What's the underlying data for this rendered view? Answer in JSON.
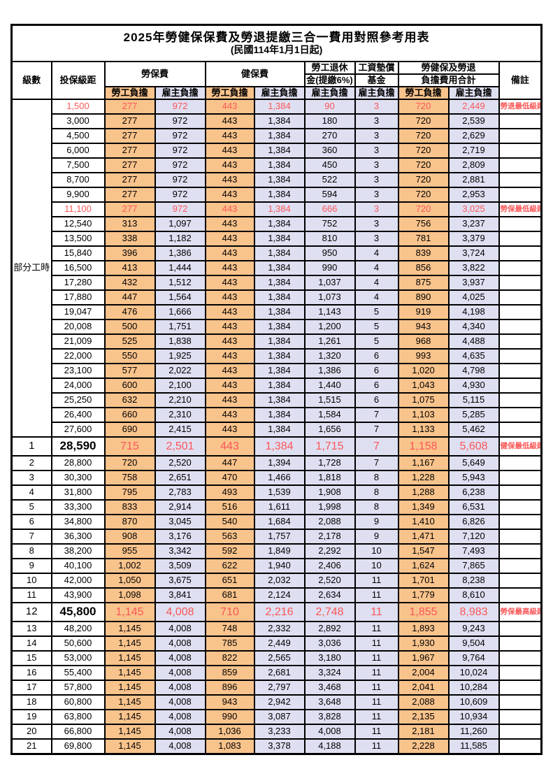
{
  "title": "2025年勞健保保費及勞退提繳三合一費用對照參考用表",
  "subtitle": "(民國114年1月1日起)",
  "columns": {
    "level": "級數",
    "bracket": "投保級距",
    "labor_ins": "勞保費",
    "health_ins": "健保費",
    "pension_l1": "勞工退休",
    "pension_l2": "金(提繳6%)",
    "wage_fund_l1": "工資墊償",
    "wage_fund_l2": "基金",
    "total_l1": "勞健保及勞退",
    "total_l2": "負擔費用合計",
    "remark": "備註",
    "employee": "勞工負擔",
    "employer": "雇主負擔"
  },
  "part_time_label": "部分工時",
  "colors": {
    "employee_fill": "#F9C38C",
    "employer_fill": "#DFDFF2",
    "highlight_text": "#FA5757",
    "border": "#000000"
  },
  "rows": [
    {
      "br": "1,500",
      "li_e": "277",
      "li_r": "972",
      "hi_e": "443",
      "hi_r": "1,384",
      "pe": "90",
      "wf": "3",
      "to_e": "720",
      "to_r": "2,449",
      "rm": "勞退最低級距",
      "red": 1
    },
    {
      "br": "3,000",
      "li_e": "277",
      "li_r": "972",
      "hi_e": "443",
      "hi_r": "1,384",
      "pe": "180",
      "wf": "3",
      "to_e": "720",
      "to_r": "2,539"
    },
    {
      "br": "4,500",
      "li_e": "277",
      "li_r": "972",
      "hi_e": "443",
      "hi_r": "1,384",
      "pe": "270",
      "wf": "3",
      "to_e": "720",
      "to_r": "2,629"
    },
    {
      "br": "6,000",
      "li_e": "277",
      "li_r": "972",
      "hi_e": "443",
      "hi_r": "1,384",
      "pe": "360",
      "wf": "3",
      "to_e": "720",
      "to_r": "2,719"
    },
    {
      "br": "7,500",
      "li_e": "277",
      "li_r": "972",
      "hi_e": "443",
      "hi_r": "1,384",
      "pe": "450",
      "wf": "3",
      "to_e": "720",
      "to_r": "2,809"
    },
    {
      "br": "8,700",
      "li_e": "277",
      "li_r": "972",
      "hi_e": "443",
      "hi_r": "1,384",
      "pe": "522",
      "wf": "3",
      "to_e": "720",
      "to_r": "2,881"
    },
    {
      "br": "9,900",
      "li_e": "277",
      "li_r": "972",
      "hi_e": "443",
      "hi_r": "1,384",
      "pe": "594",
      "wf": "3",
      "to_e": "720",
      "to_r": "2,953"
    },
    {
      "br": "11,100",
      "li_e": "277",
      "li_r": "972",
      "hi_e": "443",
      "hi_r": "1,384",
      "pe": "666",
      "wf": "3",
      "to_e": "720",
      "to_r": "3,025",
      "rm": "勞保最低級距",
      "red": 1
    },
    {
      "br": "12,540",
      "li_e": "313",
      "li_r": "1,097",
      "hi_e": "443",
      "hi_r": "1,384",
      "pe": "752",
      "wf": "3",
      "to_e": "756",
      "to_r": "3,237"
    },
    {
      "br": "13,500",
      "li_e": "338",
      "li_r": "1,182",
      "hi_e": "443",
      "hi_r": "1,384",
      "pe": "810",
      "wf": "3",
      "to_e": "781",
      "to_r": "3,379"
    },
    {
      "br": "15,840",
      "li_e": "396",
      "li_r": "1,386",
      "hi_e": "443",
      "hi_r": "1,384",
      "pe": "950",
      "wf": "4",
      "to_e": "839",
      "to_r": "3,724"
    },
    {
      "br": "16,500",
      "li_e": "413",
      "li_r": "1,444",
      "hi_e": "443",
      "hi_r": "1,384",
      "pe": "990",
      "wf": "4",
      "to_e": "856",
      "to_r": "3,822"
    },
    {
      "br": "17,280",
      "li_e": "432",
      "li_r": "1,512",
      "hi_e": "443",
      "hi_r": "1,384",
      "pe": "1,037",
      "wf": "4",
      "to_e": "875",
      "to_r": "3,937"
    },
    {
      "br": "17,880",
      "li_e": "447",
      "li_r": "1,564",
      "hi_e": "443",
      "hi_r": "1,384",
      "pe": "1,073",
      "wf": "4",
      "to_e": "890",
      "to_r": "4,025"
    },
    {
      "br": "19,047",
      "li_e": "476",
      "li_r": "1,666",
      "hi_e": "443",
      "hi_r": "1,384",
      "pe": "1,143",
      "wf": "5",
      "to_e": "919",
      "to_r": "4,198"
    },
    {
      "br": "20,008",
      "li_e": "500",
      "li_r": "1,751",
      "hi_e": "443",
      "hi_r": "1,384",
      "pe": "1,200",
      "wf": "5",
      "to_e": "943",
      "to_r": "4,340"
    },
    {
      "br": "21,009",
      "li_e": "525",
      "li_r": "1,838",
      "hi_e": "443",
      "hi_r": "1,384",
      "pe": "1,261",
      "wf": "5",
      "to_e": "968",
      "to_r": "4,488"
    },
    {
      "br": "22,000",
      "li_e": "550",
      "li_r": "1,925",
      "hi_e": "443",
      "hi_r": "1,384",
      "pe": "1,320",
      "wf": "6",
      "to_e": "993",
      "to_r": "4,635"
    },
    {
      "br": "23,100",
      "li_e": "577",
      "li_r": "2,022",
      "hi_e": "443",
      "hi_r": "1,384",
      "pe": "1,386",
      "wf": "6",
      "to_e": "1,020",
      "to_r": "4,798"
    },
    {
      "br": "24,000",
      "li_e": "600",
      "li_r": "2,100",
      "hi_e": "443",
      "hi_r": "1,384",
      "pe": "1,440",
      "wf": "6",
      "to_e": "1,043",
      "to_r": "4,930"
    },
    {
      "br": "25,250",
      "li_e": "632",
      "li_r": "2,210",
      "hi_e": "443",
      "hi_r": "1,384",
      "pe": "1,515",
      "wf": "6",
      "to_e": "1,075",
      "to_r": "5,115"
    },
    {
      "br": "26,400",
      "li_e": "660",
      "li_r": "2,310",
      "hi_e": "443",
      "hi_r": "1,384",
      "pe": "1,584",
      "wf": "7",
      "to_e": "1,103",
      "to_r": "5,285"
    },
    {
      "br": "27,600",
      "li_e": "690",
      "li_r": "2,415",
      "hi_e": "443",
      "hi_r": "1,384",
      "pe": "1,656",
      "wf": "7",
      "to_e": "1,133",
      "to_r": "5,462"
    },
    {
      "lv": "1",
      "br": "28,590",
      "li_e": "715",
      "li_r": "2,501",
      "hi_e": "443",
      "hi_r": "1,384",
      "pe": "1,715",
      "wf": "7",
      "to_e": "1,158",
      "to_r": "5,608",
      "rm": "健保最低級距",
      "red": 1,
      "big": 1
    },
    {
      "lv": "2",
      "br": "28,800",
      "li_e": "720",
      "li_r": "2,520",
      "hi_e": "447",
      "hi_r": "1,394",
      "pe": "1,728",
      "wf": "7",
      "to_e": "1,167",
      "to_r": "5,649"
    },
    {
      "lv": "3",
      "br": "30,300",
      "li_e": "758",
      "li_r": "2,651",
      "hi_e": "470",
      "hi_r": "1,466",
      "pe": "1,818",
      "wf": "8",
      "to_e": "1,228",
      "to_r": "5,943"
    },
    {
      "lv": "4",
      "br": "31,800",
      "li_e": "795",
      "li_r": "2,783",
      "hi_e": "493",
      "hi_r": "1,539",
      "pe": "1,908",
      "wf": "8",
      "to_e": "1,288",
      "to_r": "6,238"
    },
    {
      "lv": "5",
      "br": "33,300",
      "li_e": "833",
      "li_r": "2,914",
      "hi_e": "516",
      "hi_r": "1,611",
      "pe": "1,998",
      "wf": "8",
      "to_e": "1,349",
      "to_r": "6,531"
    },
    {
      "lv": "6",
      "br": "34,800",
      "li_e": "870",
      "li_r": "3,045",
      "hi_e": "540",
      "hi_r": "1,684",
      "pe": "2,088",
      "wf": "9",
      "to_e": "1,410",
      "to_r": "6,826"
    },
    {
      "lv": "7",
      "br": "36,300",
      "li_e": "908",
      "li_r": "3,176",
      "hi_e": "563",
      "hi_r": "1,757",
      "pe": "2,178",
      "wf": "9",
      "to_e": "1,471",
      "to_r": "7,120"
    },
    {
      "lv": "8",
      "br": "38,200",
      "li_e": "955",
      "li_r": "3,342",
      "hi_e": "592",
      "hi_r": "1,849",
      "pe": "2,292",
      "wf": "10",
      "to_e": "1,547",
      "to_r": "7,493"
    },
    {
      "lv": "9",
      "br": "40,100",
      "li_e": "1,002",
      "li_r": "3,509",
      "hi_e": "622",
      "hi_r": "1,940",
      "pe": "2,406",
      "wf": "10",
      "to_e": "1,624",
      "to_r": "7,865"
    },
    {
      "lv": "10",
      "br": "42,000",
      "li_e": "1,050",
      "li_r": "3,675",
      "hi_e": "651",
      "hi_r": "2,032",
      "pe": "2,520",
      "wf": "11",
      "to_e": "1,701",
      "to_r": "8,238"
    },
    {
      "lv": "11",
      "br": "43,900",
      "li_e": "1,098",
      "li_r": "3,841",
      "hi_e": "681",
      "hi_r": "2,124",
      "pe": "2,634",
      "wf": "11",
      "to_e": "1,779",
      "to_r": "8,610"
    },
    {
      "lv": "12",
      "br": "45,800",
      "li_e": "1,145",
      "li_r": "4,008",
      "hi_e": "710",
      "hi_r": "2,216",
      "pe": "2,748",
      "wf": "11",
      "to_e": "1,855",
      "to_r": "8,983",
      "rm": "勞保最高級距",
      "red": 1,
      "big": 1
    },
    {
      "lv": "13",
      "br": "48,200",
      "li_e": "1,145",
      "li_r": "4,008",
      "hi_e": "748",
      "hi_r": "2,332",
      "pe": "2,892",
      "wf": "11",
      "to_e": "1,893",
      "to_r": "9,243"
    },
    {
      "lv": "14",
      "br": "50,600",
      "li_e": "1,145",
      "li_r": "4,008",
      "hi_e": "785",
      "hi_r": "2,449",
      "pe": "3,036",
      "wf": "11",
      "to_e": "1,930",
      "to_r": "9,504"
    },
    {
      "lv": "15",
      "br": "53,000",
      "li_e": "1,145",
      "li_r": "4,008",
      "hi_e": "822",
      "hi_r": "2,565",
      "pe": "3,180",
      "wf": "11",
      "to_e": "1,967",
      "to_r": "9,764"
    },
    {
      "lv": "16",
      "br": "55,400",
      "li_e": "1,145",
      "li_r": "4,008",
      "hi_e": "859",
      "hi_r": "2,681",
      "pe": "3,324",
      "wf": "11",
      "to_e": "2,004",
      "to_r": "10,024"
    },
    {
      "lv": "17",
      "br": "57,800",
      "li_e": "1,145",
      "li_r": "4,008",
      "hi_e": "896",
      "hi_r": "2,797",
      "pe": "3,468",
      "wf": "11",
      "to_e": "2,041",
      "to_r": "10,284"
    },
    {
      "lv": "18",
      "br": "60,800",
      "li_e": "1,145",
      "li_r": "4,008",
      "hi_e": "943",
      "hi_r": "2,942",
      "pe": "3,648",
      "wf": "11",
      "to_e": "2,088",
      "to_r": "10,609"
    },
    {
      "lv": "19",
      "br": "63,800",
      "li_e": "1,145",
      "li_r": "4,008",
      "hi_e": "990",
      "hi_r": "3,087",
      "pe": "3,828",
      "wf": "11",
      "to_e": "2,135",
      "to_r": "10,934"
    },
    {
      "lv": "20",
      "br": "66,800",
      "li_e": "1,145",
      "li_r": "4,008",
      "hi_e": "1,036",
      "hi_r": "3,233",
      "pe": "4,008",
      "wf": "11",
      "to_e": "2,181",
      "to_r": "11,260"
    },
    {
      "lv": "21",
      "br": "69,800",
      "li_e": "1,145",
      "li_r": "4,008",
      "hi_e": "1,083",
      "hi_r": "3,378",
      "pe": "4,188",
      "wf": "11",
      "to_e": "2,228",
      "to_r": "11,585"
    }
  ]
}
